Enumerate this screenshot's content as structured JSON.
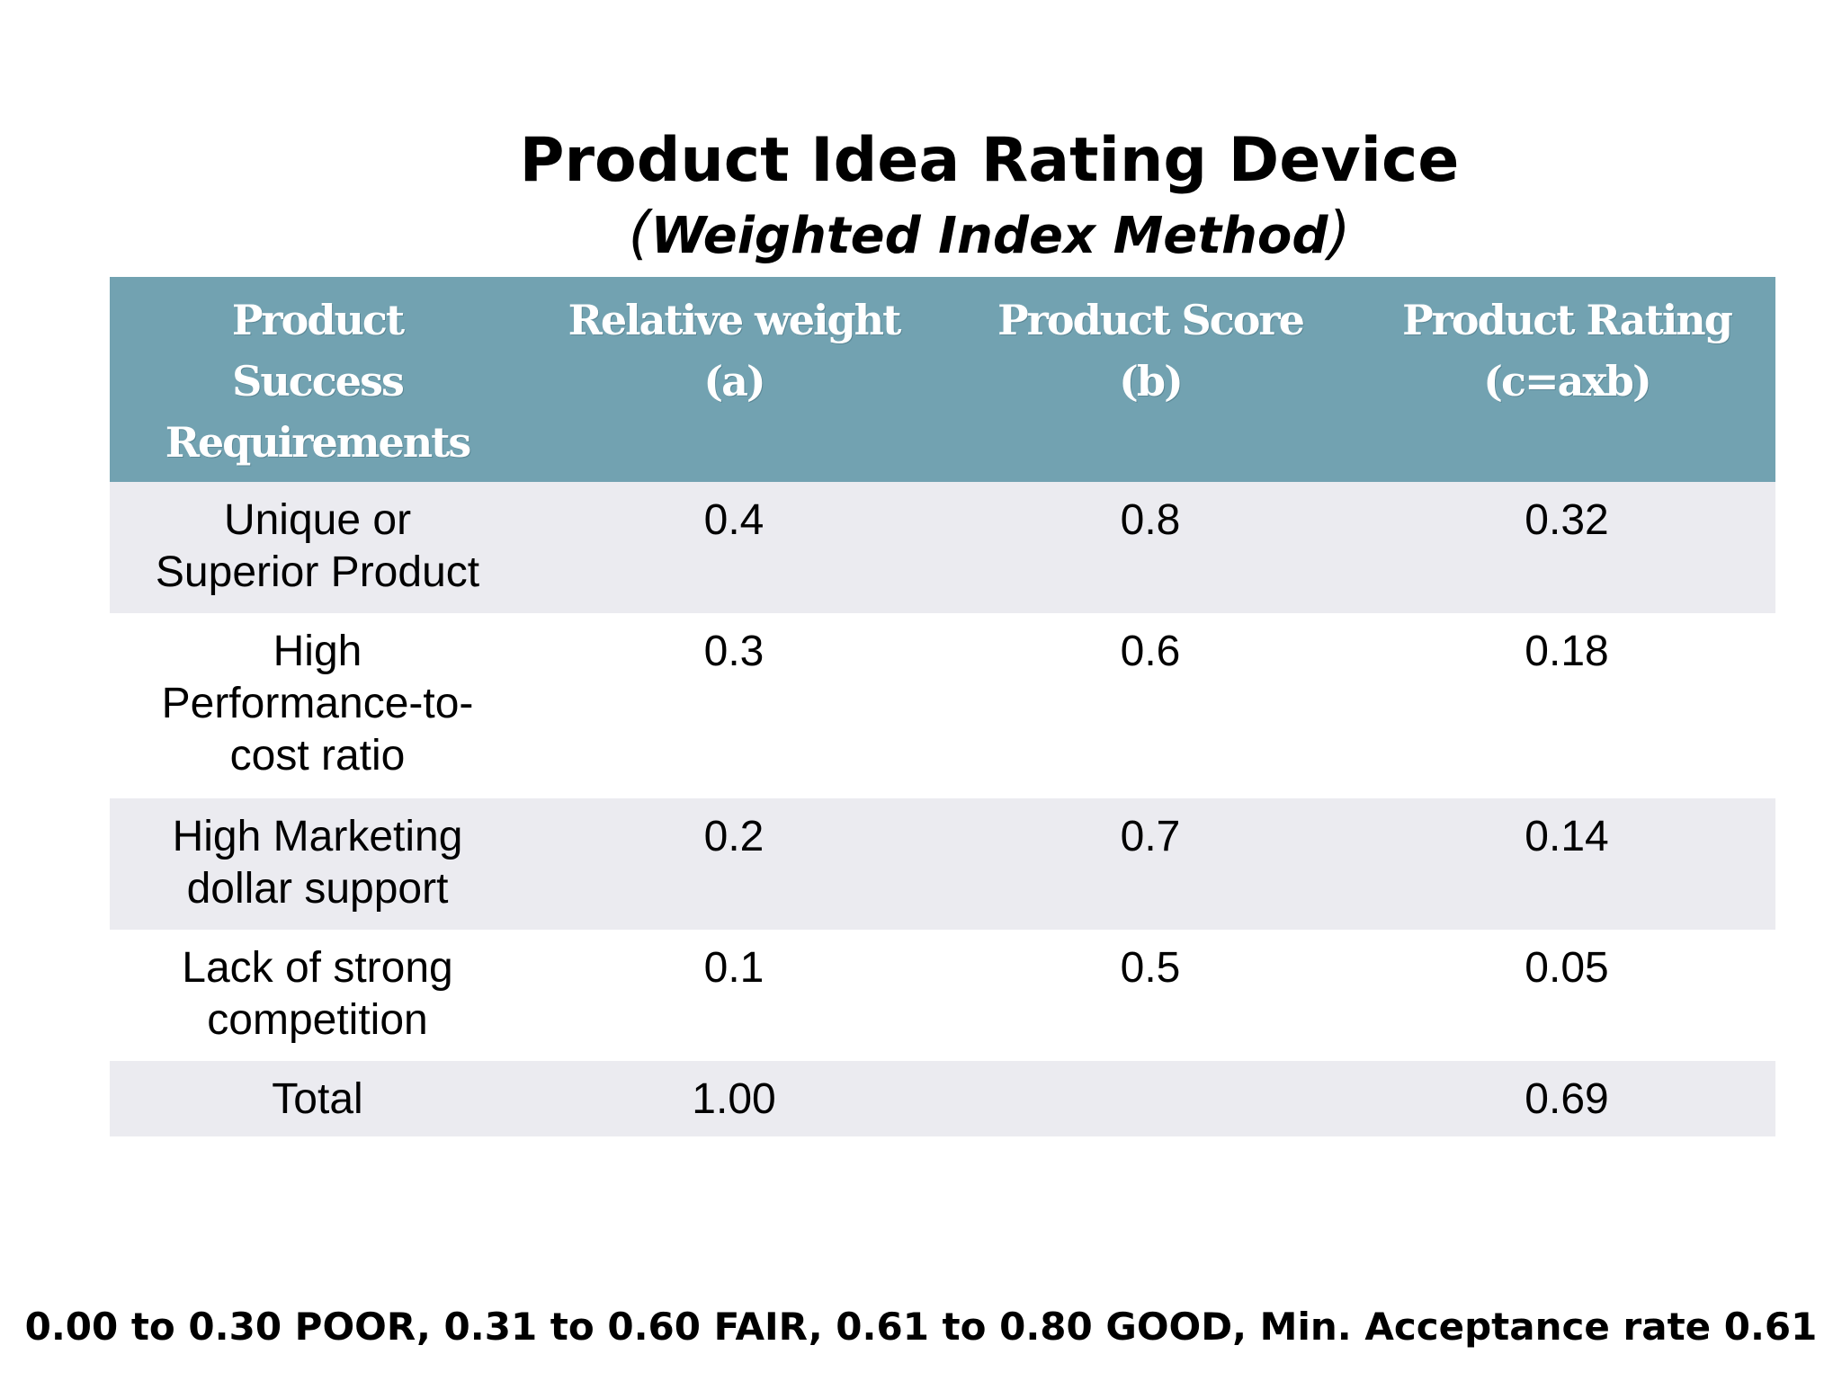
{
  "slide": {
    "title": "Product Idea Rating Device",
    "subtitle_open": "(",
    "subtitle": "Weighted Index Method",
    "subtitle_close": ")",
    "footer_note": "0.00 to 0.30 POOR, 0.31 to 0.60 FAIR, 0.61 to 0.80 GOOD, Min. Acceptance rate 0.61"
  },
  "table": {
    "headers": [
      [
        "Product",
        "Success",
        "Requirements"
      ],
      [
        "Relative weight",
        "(a)"
      ],
      [
        "Product Score",
        "(b)"
      ],
      [
        "Product Rating",
        "(c=axb)"
      ]
    ],
    "rows": [
      {
        "requirement": [
          "Unique or",
          "Superior Product"
        ],
        "weight": "0.4",
        "score": "0.8",
        "rating": "0.32"
      },
      {
        "requirement": [
          "High",
          "Performance-to-",
          "cost ratio"
        ],
        "weight": "0.3",
        "score": "0.6",
        "rating": "0.18"
      },
      {
        "requirement": [
          "High Marketing",
          "dollar support"
        ],
        "weight": "0.2",
        "score": "0.7",
        "rating": "0.14"
      },
      {
        "requirement": [
          "Lack of strong",
          "competition"
        ],
        "weight": "0.1",
        "score": "0.5",
        "rating": "0.05"
      }
    ],
    "total": {
      "label": "Total",
      "weight": "1.00",
      "score": "",
      "rating": "0.69"
    }
  },
  "colors": {
    "header_bg": "#72a2b1",
    "header_text": "#ffffff",
    "band_row": "#ebebf0",
    "plain_row": "#ffffff"
  }
}
